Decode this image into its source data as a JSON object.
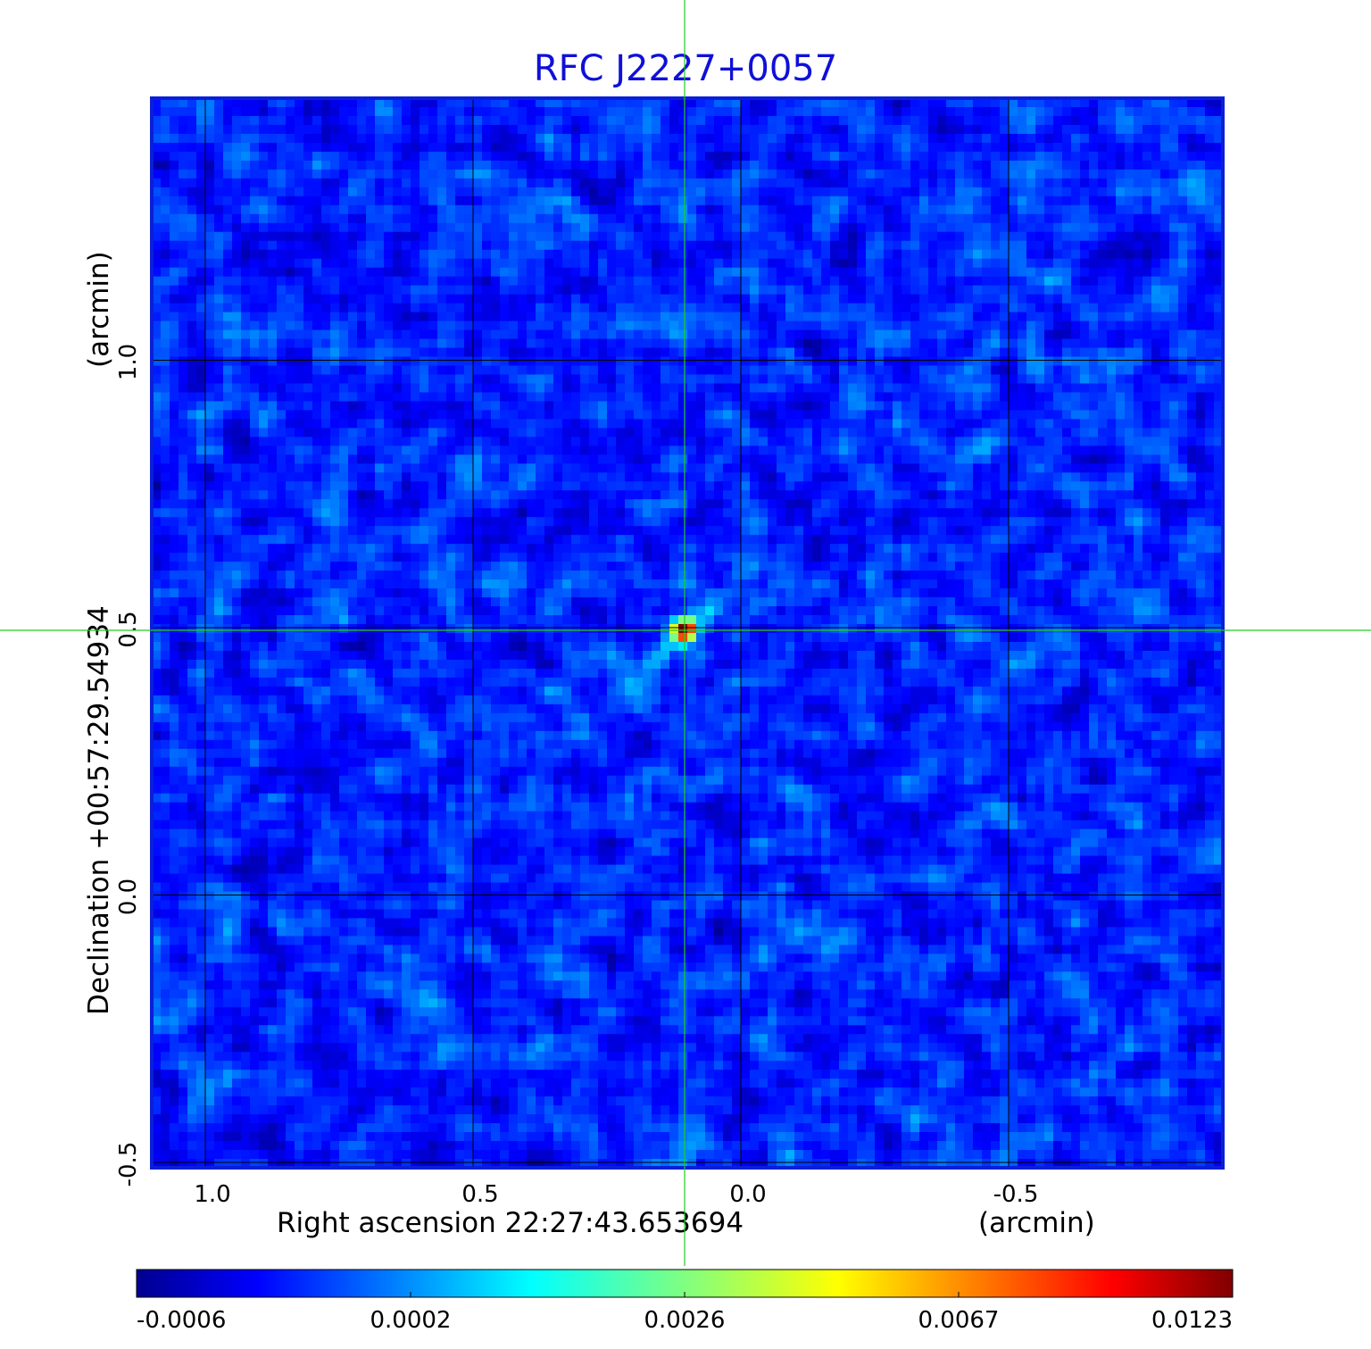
{
  "chart_data": {
    "type": "heatmap",
    "title": "RFC J2227+0057",
    "xlabel": "Right ascension  22:27:43.653694",
    "xunit": "(arcmin)",
    "ylabel": "Declination  +00:57:29.54934",
    "yunit": "(arcmin)",
    "x_ticks": [
      "1.0",
      "0.5",
      "0.0",
      "-0.5"
    ],
    "y_ticks": [
      "1.0",
      "0.5",
      "0.0",
      "-0.5"
    ],
    "x_tick_values": [
      1.0,
      0.5,
      0.0,
      -0.5
    ],
    "y_tick_values": [
      1.0,
      0.5,
      0.0,
      -0.5
    ],
    "xlim": [
      1.1,
      -0.9
    ],
    "ylim": [
      -0.51,
      1.49
    ],
    "grid": true,
    "crosshair": {
      "x": 0.105,
      "y": 0.495,
      "color": "#22cc22"
    },
    "source_peak": {
      "x": 0.105,
      "y": 0.495,
      "value": 0.0123
    },
    "colormap": "jet",
    "colorbar": {
      "ticks": [
        "-0.0006",
        "0.0002",
        "0.0026",
        "0.0067",
        "0.0123"
      ],
      "min": -0.0006,
      "max": 0.0123
    },
    "border_color": "#0a1ed8"
  }
}
